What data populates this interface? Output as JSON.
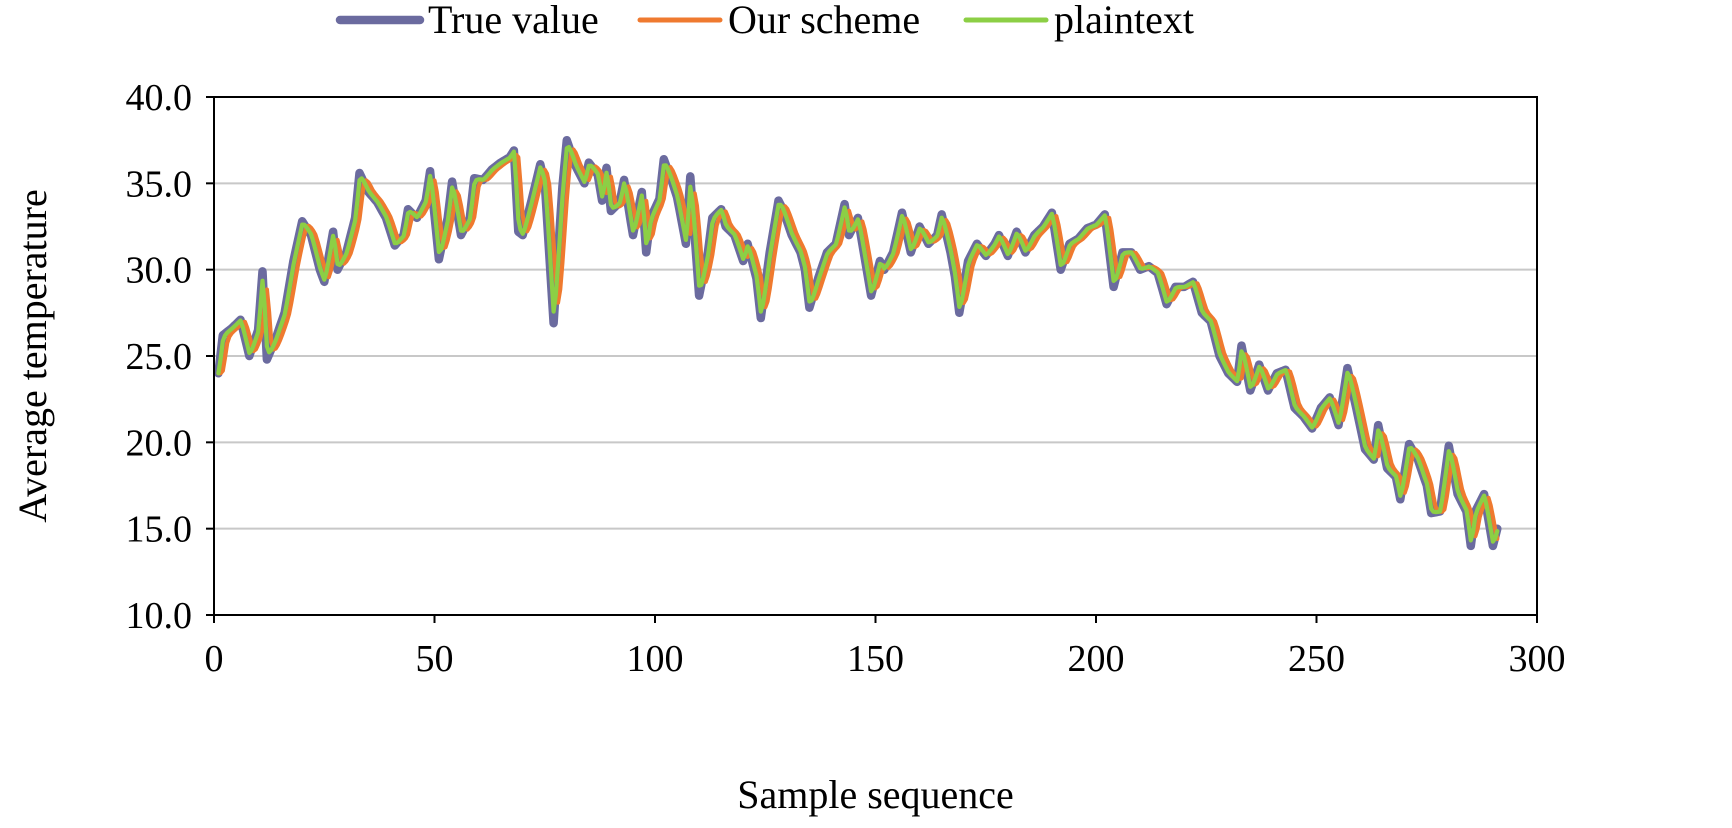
{
  "chart_data": {
    "type": "line",
    "title": "",
    "xlabel": "Sample sequence",
    "ylabel": "Average temperature",
    "xlim": [
      0,
      300
    ],
    "ylim": [
      10,
      40
    ],
    "xticks": [
      0,
      50,
      100,
      150,
      200,
      250,
      300
    ],
    "yticks": [
      10,
      15,
      20,
      25,
      30,
      35,
      40
    ],
    "xtick_labels": [
      "0",
      "50",
      "100",
      "150",
      "200",
      "250",
      "300"
    ],
    "ytick_labels": [
      "10.0",
      "15.0",
      "20.0",
      "25.0",
      "30.0",
      "35.0",
      "40.0"
    ],
    "grid": "horizontal",
    "legend_position": "top-center",
    "anchors": [
      [
        1,
        24.0
      ],
      [
        2,
        26.2
      ],
      [
        4,
        26.6
      ],
      [
        6,
        27.1
      ],
      [
        8,
        25.0
      ],
      [
        10,
        26.5
      ],
      [
        11,
        29.9
      ],
      [
        12,
        24.8
      ],
      [
        14,
        26.0
      ],
      [
        16,
        27.5
      ],
      [
        18,
        30.5
      ],
      [
        20,
        32.8
      ],
      [
        22,
        32.0
      ],
      [
        24,
        30.0
      ],
      [
        25,
        29.3
      ],
      [
        27,
        32.2
      ],
      [
        28,
        30.0
      ],
      [
        30,
        31.0
      ],
      [
        32,
        33.0
      ],
      [
        33,
        35.6
      ],
      [
        35,
        34.5
      ],
      [
        37,
        33.9
      ],
      [
        39,
        33.0
      ],
      [
        41,
        31.4
      ],
      [
        43,
        32.0
      ],
      [
        44,
        33.5
      ],
      [
        46,
        33.0
      ],
      [
        48,
        34.0
      ],
      [
        49,
        35.7
      ],
      [
        51,
        30.6
      ],
      [
        53,
        33.0
      ],
      [
        54,
        35.1
      ],
      [
        56,
        32.0
      ],
      [
        58,
        33.0
      ],
      [
        59,
        35.3
      ],
      [
        61,
        35.2
      ],
      [
        63,
        35.8
      ],
      [
        65,
        36.2
      ],
      [
        67,
        36.5
      ],
      [
        68,
        36.9
      ],
      [
        69,
        32.2
      ],
      [
        70,
        32.0
      ],
      [
        72,
        34.0
      ],
      [
        74,
        36.1
      ],
      [
        75,
        35.0
      ],
      [
        77,
        26.9
      ],
      [
        79,
        34.8
      ],
      [
        80,
        37.5
      ],
      [
        82,
        36.0
      ],
      [
        84,
        35.0
      ],
      [
        85,
        36.2
      ],
      [
        87,
        35.5
      ],
      [
        88,
        34.0
      ],
      [
        89,
        35.9
      ],
      [
        90,
        33.4
      ],
      [
        92,
        33.9
      ],
      [
        93,
        35.2
      ],
      [
        95,
        32.0
      ],
      [
        97,
        34.5
      ],
      [
        98,
        31.0
      ],
      [
        99,
        33.0
      ],
      [
        101,
        34.1
      ],
      [
        102,
        36.4
      ],
      [
        104,
        35.0
      ],
      [
        105,
        34.2
      ],
      [
        107,
        31.5
      ],
      [
        108,
        35.4
      ],
      [
        110,
        28.5
      ],
      [
        112,
        31.0
      ],
      [
        113,
        33.0
      ],
      [
        115,
        33.5
      ],
      [
        116,
        32.5
      ],
      [
        118,
        32.0
      ],
      [
        120,
        30.5
      ],
      [
        121,
        31.5
      ],
      [
        123,
        29.5
      ],
      [
        124,
        27.2
      ],
      [
        126,
        31.0
      ],
      [
        128,
        34.0
      ],
      [
        129,
        33.5
      ],
      [
        131,
        32.0
      ],
      [
        133,
        31.0
      ],
      [
        134,
        30.0
      ],
      [
        135,
        27.8
      ],
      [
        137,
        29.5
      ],
      [
        139,
        31.0
      ],
      [
        141,
        31.5
      ],
      [
        143,
        33.8
      ],
      [
        144,
        32.0
      ],
      [
        146,
        33.0
      ],
      [
        148,
        30.0
      ],
      [
        149,
        28.5
      ],
      [
        151,
        30.5
      ],
      [
        152,
        30.0
      ],
      [
        154,
        31.0
      ],
      [
        156,
        33.3
      ],
      [
        158,
        31.0
      ],
      [
        160,
        32.5
      ],
      [
        162,
        31.5
      ],
      [
        164,
        32.0
      ],
      [
        165,
        33.2
      ],
      [
        167,
        31.0
      ],
      [
        168,
        29.6
      ],
      [
        169,
        27.5
      ],
      [
        171,
        30.5
      ],
      [
        173,
        31.5
      ],
      [
        175,
        30.8
      ],
      [
        177,
        31.5
      ],
      [
        178,
        32.0
      ],
      [
        180,
        30.8
      ],
      [
        182,
        32.2
      ],
      [
        184,
        31.0
      ],
      [
        186,
        32.0
      ],
      [
        188,
        32.5
      ],
      [
        190,
        33.3
      ],
      [
        192,
        30.0
      ],
      [
        194,
        31.5
      ],
      [
        196,
        31.8
      ],
      [
        198,
        32.4
      ],
      [
        200,
        32.6
      ],
      [
        202,
        33.2
      ],
      [
        204,
        29.0
      ],
      [
        206,
        31.0
      ],
      [
        208,
        31.0
      ],
      [
        210,
        30.0
      ],
      [
        212,
        30.2
      ],
      [
        214,
        29.8
      ],
      [
        216,
        28.0
      ],
      [
        218,
        29.0
      ],
      [
        220,
        29.0
      ],
      [
        222,
        29.3
      ],
      [
        224,
        27.5
      ],
      [
        226,
        27.0
      ],
      [
        228,
        25.0
      ],
      [
        230,
        24.0
      ],
      [
        232,
        23.5
      ],
      [
        233,
        25.6
      ],
      [
        235,
        23.0
      ],
      [
        237,
        24.5
      ],
      [
        239,
        23.0
      ],
      [
        241,
        24.0
      ],
      [
        243,
        24.2
      ],
      [
        245,
        22.0
      ],
      [
        247,
        21.5
      ],
      [
        249,
        20.8
      ],
      [
        251,
        22.0
      ],
      [
        253,
        22.6
      ],
      [
        255,
        21.0
      ],
      [
        257,
        24.3
      ],
      [
        259,
        22.0
      ],
      [
        261,
        19.6
      ],
      [
        263,
        19.0
      ],
      [
        264,
        21.0
      ],
      [
        266,
        18.5
      ],
      [
        268,
        18.0
      ],
      [
        269,
        16.7
      ],
      [
        271,
        19.9
      ],
      [
        273,
        19.0
      ],
      [
        275,
        17.5
      ],
      [
        276,
        15.9
      ],
      [
        278,
        16.0
      ],
      [
        280,
        19.8
      ],
      [
        282,
        17.0
      ],
      [
        284,
        16.0
      ],
      [
        285,
        14.0
      ],
      [
        286,
        16.0
      ],
      [
        288,
        17.0
      ],
      [
        289,
        15.5
      ],
      [
        290,
        14.0
      ],
      [
        291,
        15.0
      ]
    ],
    "series": [
      {
        "name": "True value",
        "color": "#6b6b9f",
        "line_width": 8.5,
        "shift": 0,
        "smoothing": 0
      },
      {
        "name": "Our scheme",
        "color": "#ef7a2f",
        "line_width": 4.2,
        "shift": 0.9,
        "smoothing": 0.35
      },
      {
        "name": "plaintext",
        "color": "#8ccf45",
        "line_width": 4.2,
        "shift": 0,
        "smoothing": 0.25
      }
    ]
  }
}
